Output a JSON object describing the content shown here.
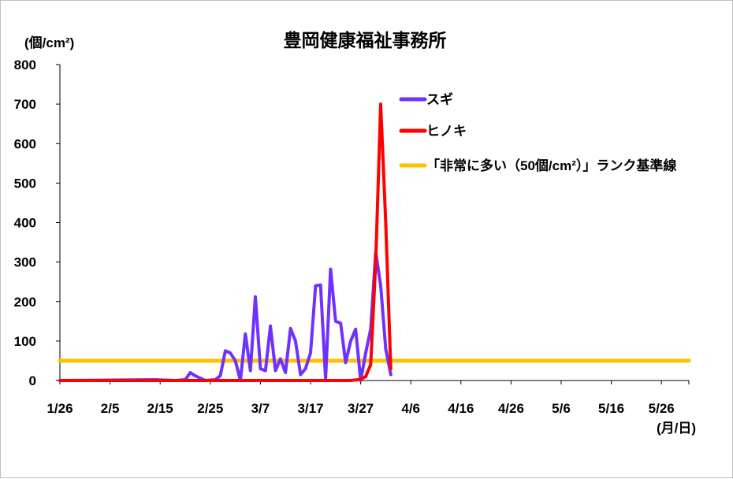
{
  "chart_data": {
    "type": "line",
    "title": "豊岡健康福祉事務所",
    "ylabel": "(個/cm²)",
    "xlabel": "(月/日)",
    "ylim": [
      0,
      800
    ],
    "y_ticks": [
      "0",
      "100",
      "200",
      "300",
      "400",
      "500",
      "600",
      "700",
      "800"
    ],
    "x_ticks": [
      "1/26",
      "2/5",
      "2/15",
      "2/25",
      "3/7",
      "3/17",
      "3/27",
      "4/6",
      "4/16",
      "4/26",
      "5/6",
      "5/16",
      "5/26"
    ],
    "x_start": "1/26",
    "x_end": "6/5",
    "grid": false,
    "legend_position": "top-right",
    "series": [
      {
        "name": "スギ",
        "color": "#7030ff",
        "points": [
          [
            "1/26",
            0
          ],
          [
            "2/14",
            2
          ],
          [
            "2/18",
            0
          ],
          [
            "2/20",
            2
          ],
          [
            "2/21",
            20
          ],
          [
            "2/22",
            12
          ],
          [
            "2/24",
            0
          ],
          [
            "2/26",
            2
          ],
          [
            "2/27",
            12
          ],
          [
            "2/28",
            75
          ],
          [
            "3/1",
            70
          ],
          [
            "3/2",
            50
          ],
          [
            "3/3",
            0
          ],
          [
            "3/4",
            118
          ],
          [
            "3/5",
            25
          ],
          [
            "3/6",
            212
          ],
          [
            "3/7",
            30
          ],
          [
            "3/8",
            25
          ],
          [
            "3/9",
            138
          ],
          [
            "3/10",
            25
          ],
          [
            "3/11",
            55
          ],
          [
            "3/12",
            20
          ],
          [
            "3/13",
            132
          ],
          [
            "3/14",
            100
          ],
          [
            "3/15",
            15
          ],
          [
            "3/16",
            30
          ],
          [
            "3/17",
            70
          ],
          [
            "3/18",
            240
          ],
          [
            "3/19",
            242
          ],
          [
            "3/20",
            5
          ],
          [
            "3/21",
            282
          ],
          [
            "3/22",
            150
          ],
          [
            "3/23",
            145
          ],
          [
            "3/24",
            45
          ],
          [
            "3/25",
            100
          ],
          [
            "3/26",
            130
          ],
          [
            "3/27",
            0
          ],
          [
            "3/28",
            70
          ],
          [
            "3/29",
            130
          ],
          [
            "3/30",
            325
          ],
          [
            "3/31",
            240
          ],
          [
            "4/1",
            80
          ],
          [
            "4/2",
            15
          ]
        ]
      },
      {
        "name": "ヒノキ",
        "color": "#ff0000",
        "points": [
          [
            "1/26",
            0
          ],
          [
            "3/25",
            0
          ],
          [
            "3/27",
            3
          ],
          [
            "3/28",
            10
          ],
          [
            "3/29",
            40
          ],
          [
            "3/30",
            300
          ],
          [
            "3/31",
            700
          ],
          [
            "4/1",
            400
          ],
          [
            "4/2",
            30
          ]
        ]
      },
      {
        "name": "「非常に多い（50個/cm²）」ランク基準線",
        "color": "#ffc000",
        "points": [
          [
            "1/26",
            50
          ],
          [
            "6/5",
            50
          ]
        ]
      }
    ]
  }
}
